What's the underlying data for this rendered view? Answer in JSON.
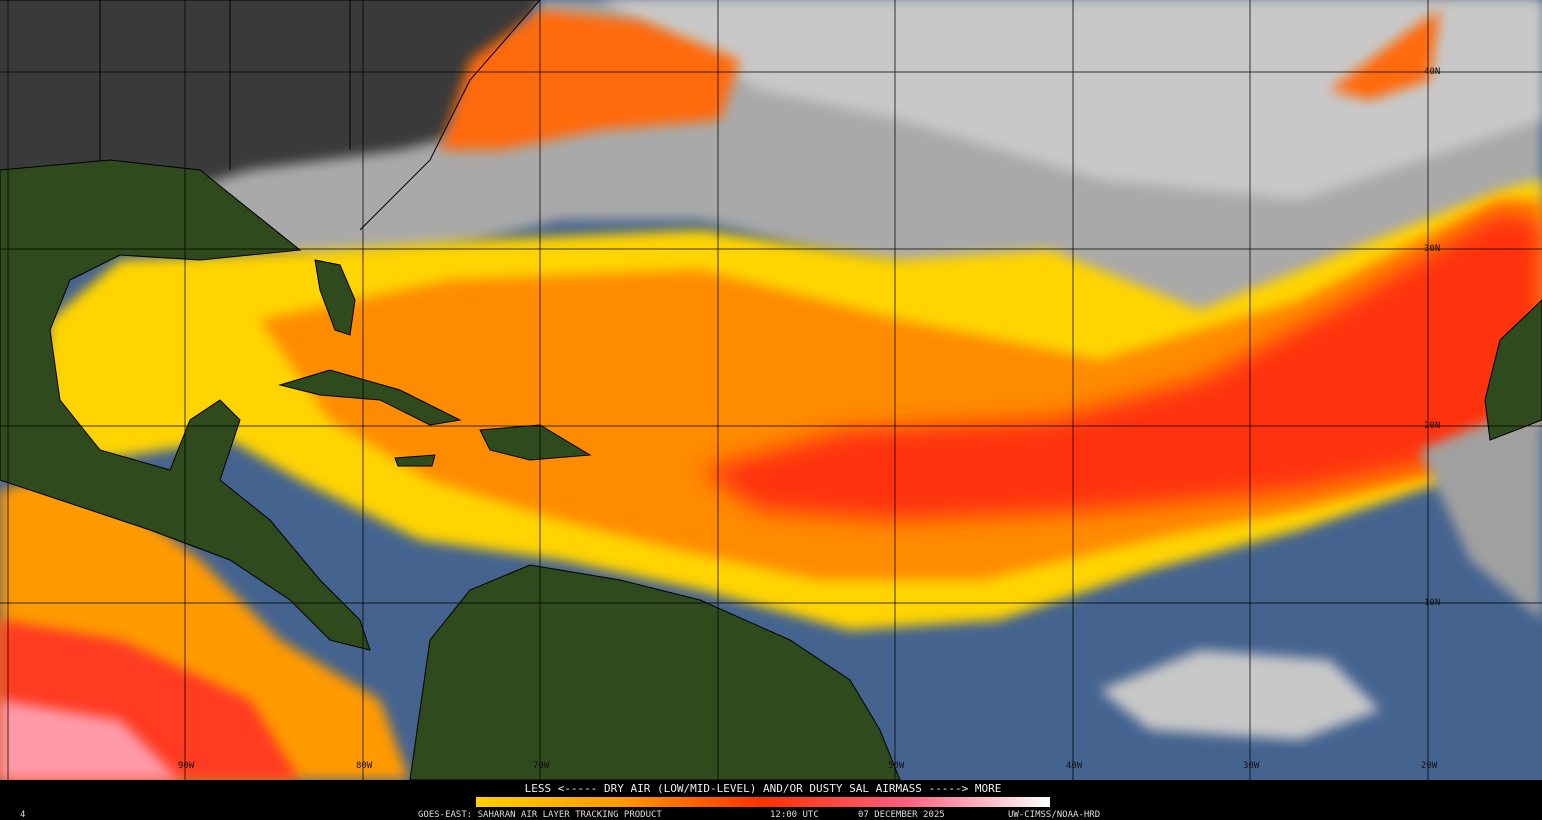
{
  "map": {
    "latitude_labels": [
      "40N",
      "30N",
      "20N",
      "10N"
    ],
    "longitude_labels": [
      "90W",
      "80W",
      "70W",
      "50W",
      "40W",
      "30W",
      "20W"
    ]
  },
  "legend": {
    "text": "LESS <----- DRY AIR (LOW/MID-LEVEL) AND/OR DUSTY SAL AIRMASS -----> MORE"
  },
  "footer": {
    "frame": "4",
    "product": "GOES-EAST: SAHARAN AIR LAYER TRACKING PRODUCT",
    "time": "12:00 UTC",
    "date": "07 DECEMBER 2025",
    "credit": "UW-CIMSS/NOAA-HRD"
  }
}
